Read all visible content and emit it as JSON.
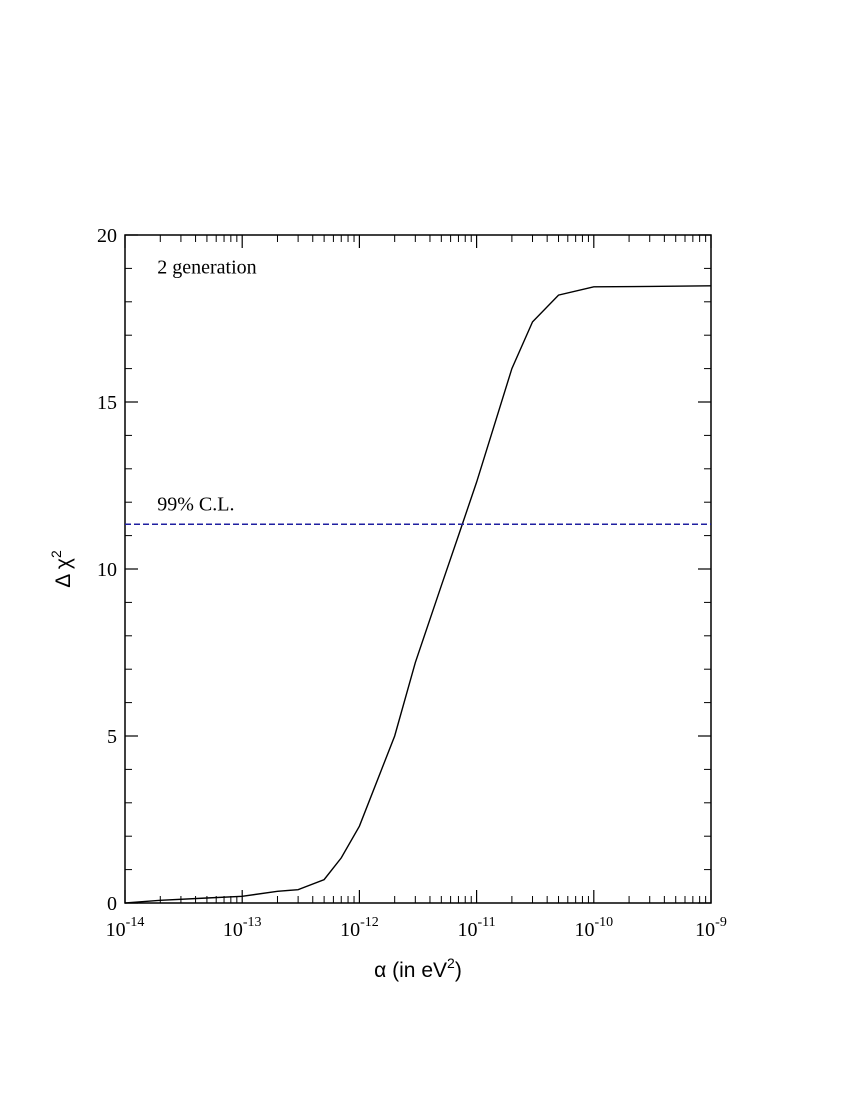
{
  "chart_data": {
    "type": "line",
    "xlabel": "α (in eV²)",
    "xlabel_parts": {
      "base": "α (in eV",
      "sup": "2",
      "tail": ")"
    },
    "ylabel": "Δ χ²",
    "ylabel_parts": {
      "base": "Δ χ",
      "sup": "2"
    },
    "x_scale": "log",
    "xlim": [
      1e-14,
      1e-09
    ],
    "ylim": [
      0,
      20
    ],
    "x_ticks": [
      {
        "base": "10",
        "exp": "-14",
        "value": 1e-14
      },
      {
        "base": "10",
        "exp": "-13",
        "value": 1e-13
      },
      {
        "base": "10",
        "exp": "-12",
        "value": 1e-12
      },
      {
        "base": "10",
        "exp": "-11",
        "value": 1e-11
      },
      {
        "base": "10",
        "exp": "-10",
        "value": 1e-10
      },
      {
        "base": "10",
        "exp": "-9",
        "value": 1e-09
      }
    ],
    "y_ticks": [
      {
        "label": "0",
        "value": 0
      },
      {
        "label": "5",
        "value": 5
      },
      {
        "label": "10",
        "value": 10
      },
      {
        "label": "15",
        "value": 15
      },
      {
        "label": "20",
        "value": 20
      }
    ],
    "grid": false,
    "series": [
      {
        "style": "solid",
        "color": "#000000",
        "x": [
          1e-14,
          2e-14,
          5e-14,
          1e-13,
          2e-13,
          3e-13,
          5e-13,
          7e-13,
          1e-12,
          2e-12,
          3e-12,
          5e-12,
          7e-12,
          1e-11,
          2e-11,
          3e-11,
          5e-11,
          1e-10,
          3e-10,
          1e-09
        ],
        "y": [
          0.0,
          0.08,
          0.15,
          0.2,
          0.35,
          0.4,
          0.7,
          1.35,
          2.3,
          5.0,
          7.2,
          9.5,
          11.0,
          12.6,
          16.0,
          17.4,
          18.2,
          18.45,
          18.46,
          18.48
        ]
      },
      {
        "style": "dashed",
        "color": "#1f1fa0",
        "x": [
          1e-14,
          1e-09
        ],
        "y": [
          11.34,
          11.34
        ]
      }
    ],
    "annotations": [
      {
        "text": "2 generation",
        "x": 2e-14,
        "y": 19.0
      },
      {
        "text": "99% C.L.",
        "x": 2e-14,
        "y": 11.9
      }
    ]
  }
}
